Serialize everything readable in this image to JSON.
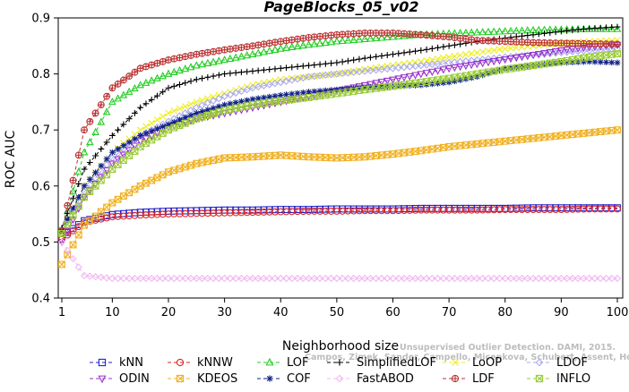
{
  "chart_data": {
    "type": "line",
    "title": "PageBlocks_05_v02",
    "xlabel": "Neighborhood size",
    "ylabel": "ROC AUC",
    "xlim": [
      1,
      100
    ],
    "ylim": [
      0.4,
      0.9
    ],
    "xticks": [
      1,
      10,
      20,
      30,
      40,
      50,
      60,
      70,
      80,
      90,
      100
    ],
    "yticks": [
      0.4,
      0.5,
      0.6,
      0.7,
      0.8,
      0.9
    ],
    "grid": false,
    "legend_position": "bottom",
    "x": [
      1,
      5,
      10,
      15,
      20,
      25,
      30,
      35,
      40,
      45,
      50,
      55,
      60,
      65,
      70,
      75,
      80,
      85,
      90,
      95,
      100
    ],
    "series": [
      {
        "name": "kNN",
        "color": "#2222cc",
        "marker": "square",
        "values": [
          0.51,
          0.538,
          0.549,
          0.553,
          0.555,
          0.556,
          0.557,
          0.557,
          0.558,
          0.558,
          0.559,
          0.559,
          0.559,
          0.56,
          0.56,
          0.56,
          0.56,
          0.561,
          0.561,
          0.561,
          0.561
        ]
      },
      {
        "name": "kNNW",
        "color": "#dd2222",
        "marker": "circle",
        "values": [
          0.505,
          0.535,
          0.545,
          0.548,
          0.55,
          0.551,
          0.552,
          0.553,
          0.554,
          0.555,
          0.555,
          0.556,
          0.556,
          0.557,
          0.557,
          0.557,
          0.558,
          0.558,
          0.558,
          0.559,
          0.559
        ]
      },
      {
        "name": "LOF",
        "color": "#22cc22",
        "marker": "triangle",
        "values": [
          0.52,
          0.66,
          0.75,
          0.78,
          0.8,
          0.815,
          0.825,
          0.835,
          0.845,
          0.852,
          0.858,
          0.862,
          0.866,
          0.87,
          0.872,
          0.874,
          0.876,
          0.878,
          0.879,
          0.88,
          0.88
        ]
      },
      {
        "name": "SimplifiedLOF",
        "color": "#000000",
        "marker": "plus",
        "values": [
          0.525,
          0.63,
          0.69,
          0.74,
          0.775,
          0.79,
          0.8,
          0.805,
          0.81,
          0.815,
          0.82,
          0.828,
          0.835,
          0.842,
          0.85,
          0.858,
          0.864,
          0.87,
          0.876,
          0.881,
          0.884
        ]
      },
      {
        "name": "LoOP",
        "color": "#eeee22",
        "marker": "x",
        "values": [
          0.52,
          0.6,
          0.66,
          0.7,
          0.73,
          0.75,
          0.765,
          0.78,
          0.79,
          0.795,
          0.8,
          0.808,
          0.815,
          0.822,
          0.83,
          0.838,
          0.845,
          0.85,
          0.855,
          0.858,
          0.86
        ]
      },
      {
        "name": "LDOF",
        "color": "#aaaaee",
        "marker": "diamond",
        "values": [
          0.52,
          0.59,
          0.65,
          0.69,
          0.715,
          0.74,
          0.76,
          0.775,
          0.785,
          0.795,
          0.8,
          0.805,
          0.81,
          0.815,
          0.82,
          0.825,
          0.83,
          0.834,
          0.838,
          0.842,
          0.845
        ]
      },
      {
        "name": "ODIN",
        "color": "#9933cc",
        "marker": "triangle-down",
        "values": [
          0.5,
          0.58,
          0.64,
          0.68,
          0.705,
          0.72,
          0.73,
          0.74,
          0.75,
          0.76,
          0.77,
          0.78,
          0.79,
          0.8,
          0.81,
          0.818,
          0.826,
          0.834,
          0.842,
          0.848,
          0.852
        ]
      },
      {
        "name": "KDEOS",
        "color": "#f0b020",
        "marker": "square-x",
        "values": [
          0.46,
          0.53,
          0.57,
          0.6,
          0.625,
          0.64,
          0.65,
          0.652,
          0.655,
          0.652,
          0.65,
          0.652,
          0.657,
          0.663,
          0.67,
          0.675,
          0.68,
          0.685,
          0.69,
          0.695,
          0.7
        ]
      },
      {
        "name": "COF",
        "color": "#112288",
        "marker": "star",
        "values": [
          0.52,
          0.6,
          0.66,
          0.69,
          0.71,
          0.73,
          0.745,
          0.755,
          0.762,
          0.768,
          0.772,
          0.776,
          0.778,
          0.78,
          0.785,
          0.795,
          0.81,
          0.815,
          0.82,
          0.822,
          0.82
        ]
      },
      {
        "name": "FastABOD",
        "color": "#f0b8f0",
        "marker": "diamond-dot",
        "values": [
          0.5,
          0.44,
          0.435,
          0.435,
          0.435,
          0.435,
          0.435,
          0.435,
          0.435,
          0.435,
          0.435,
          0.435,
          0.435,
          0.435,
          0.435,
          0.435,
          0.435,
          0.435,
          0.435,
          0.435,
          0.435
        ]
      },
      {
        "name": "LDF",
        "color": "#bb3333",
        "marker": "circle-plus",
        "values": [
          0.52,
          0.7,
          0.775,
          0.81,
          0.825,
          0.835,
          0.843,
          0.85,
          0.858,
          0.865,
          0.87,
          0.873,
          0.873,
          0.87,
          0.866,
          0.86,
          0.858,
          0.856,
          0.855,
          0.854,
          0.853
        ]
      },
      {
        "name": "INFLO",
        "color": "#99cc33",
        "marker": "square-x",
        "values": [
          0.515,
          0.58,
          0.63,
          0.67,
          0.7,
          0.72,
          0.735,
          0.745,
          0.752,
          0.758,
          0.765,
          0.772,
          0.778,
          0.785,
          0.792,
          0.8,
          0.808,
          0.815,
          0.822,
          0.83,
          0.836
        ]
      }
    ],
    "watermark": "Campos, Zimek, Sander, Campello, Micenkova, Schubert, Assent, Houle",
    "watermark_line1": "Unsupervised Outlier Detection. DAMI, 2015."
  }
}
